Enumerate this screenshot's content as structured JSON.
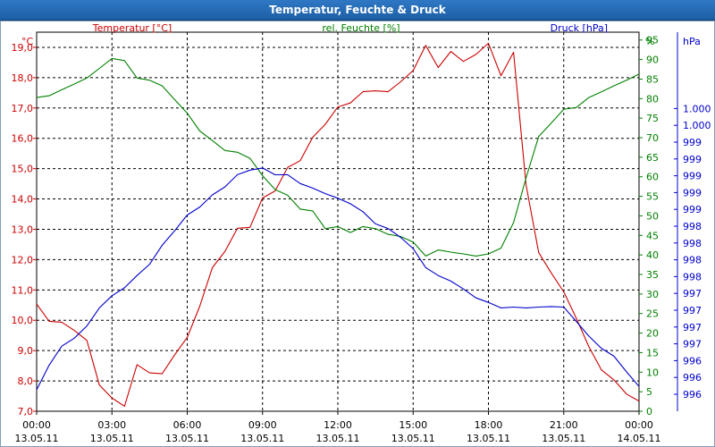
{
  "window": {
    "title": "Temperatur, Feuchte & Druck"
  },
  "colors": {
    "temperature": "#cc0000",
    "humidity": "#008000",
    "pressure": "#0000cc",
    "title_bar": "#1c5fa6",
    "grid": "#000000"
  },
  "chart_data": {
    "type": "line",
    "title": "Temperatur, Feuchte & Druck",
    "grid": true,
    "x_ticks": [
      {
        "time": "00:00",
        "date": "13.05.11"
      },
      {
        "time": "03:00",
        "date": "13.05.11"
      },
      {
        "time": "06:00",
        "date": "13.05.11"
      },
      {
        "time": "09:00",
        "date": "13.05.11"
      },
      {
        "time": "12:00",
        "date": "13.05.11"
      },
      {
        "time": "15:00",
        "date": "13.05.11"
      },
      {
        "time": "18:00",
        "date": "13.05.11"
      },
      {
        "time": "21:00",
        "date": "13.05.11"
      },
      {
        "time": "00:00",
        "date": "14.05.11"
      }
    ],
    "x_range": [
      "13.05.11 00:00",
      "14.05.11 00:00"
    ],
    "axes": {
      "temperature": {
        "label": "Temperatur [°C]",
        "unit": "°C",
        "min": 7,
        "max": 19.5,
        "ticks": [
          "7,0",
          "8,0",
          "9,0",
          "10,0",
          "11,0",
          "12,0",
          "13,0",
          "14,0",
          "15,0",
          "16,0",
          "17,0",
          "18,0",
          "19,0"
        ]
      },
      "humidity": {
        "label": "rel. Feuchte [%]",
        "unit": "%",
        "min": 0,
        "max": 97,
        "ticks": [
          "0",
          "5",
          "10",
          "15",
          "20",
          "25",
          "30",
          "35",
          "40",
          "45",
          "50",
          "55",
          "60",
          "65",
          "70",
          "75",
          "80",
          "85",
          "90",
          "95"
        ]
      },
      "pressure": {
        "label": "Druck [hPa]",
        "unit": "hPa",
        "ticks": [
          "996",
          "996",
          "996",
          "997",
          "997",
          "997",
          "997",
          "998",
          "998",
          "998",
          "998",
          "999",
          "999",
          "999",
          "999",
          "999",
          "1.000",
          "1.000"
        ]
      }
    },
    "series": [
      {
        "name": "Temperatur [°C]",
        "axis": "temperature",
        "x": [
          "00:00",
          "00:30",
          "01:00",
          "01:30",
          "02:00",
          "02:30",
          "03:00",
          "03:30",
          "04:00",
          "04:30",
          "05:00",
          "05:30",
          "06:00",
          "06:30",
          "07:00",
          "07:30",
          "08:00",
          "08:30",
          "09:00",
          "09:30",
          "10:00",
          "10:30",
          "11:00",
          "11:30",
          "12:00",
          "12:30",
          "13:00",
          "13:30",
          "14:00",
          "14:30",
          "15:00",
          "15:30",
          "16:00",
          "16:30",
          "17:00",
          "17:30",
          "18:00",
          "18:30",
          "19:00",
          "19:30",
          "20:00",
          "20:30",
          "21:00",
          "21:30",
          "22:00",
          "22:30",
          "23:00",
          "23:30",
          "24:00"
        ],
        "values": [
          10.5,
          10.0,
          9.9,
          9.7,
          9.3,
          7.9,
          7.4,
          7.2,
          8.5,
          8.3,
          8.2,
          8.9,
          9.4,
          10.5,
          11.7,
          12.3,
          13.0,
          13.1,
          14.0,
          14.3,
          15.0,
          15.3,
          16.0,
          16.5,
          17.0,
          17.2,
          17.5,
          17.6,
          17.5,
          17.9,
          18.2,
          19.1,
          18.3,
          18.9,
          18.5,
          18.8,
          19.1,
          18.1,
          18.8,
          14.5,
          12.2,
          11.6,
          10.9,
          10.1,
          9.1,
          8.4,
          8.0,
          7.6,
          7.3
        ]
      },
      {
        "name": "rel. Feuchte [%]",
        "axis": "humidity",
        "x": [
          "00:00",
          "00:30",
          "01:00",
          "01:30",
          "02:00",
          "02:30",
          "03:00",
          "03:30",
          "04:00",
          "04:30",
          "05:00",
          "05:30",
          "06:00",
          "06:30",
          "07:00",
          "07:30",
          "08:00",
          "08:30",
          "09:00",
          "09:30",
          "10:00",
          "10:30",
          "11:00",
          "11:30",
          "12:00",
          "12:30",
          "13:00",
          "13:30",
          "14:00",
          "14:30",
          "15:00",
          "15:30",
          "16:00",
          "16:30",
          "17:00",
          "17:30",
          "18:00",
          "18:30",
          "19:00",
          "19:30",
          "20:00",
          "20:30",
          "21:00",
          "21:30",
          "22:00",
          "22:30",
          "23:00",
          "23:30",
          "24:00"
        ],
        "values": [
          80,
          81,
          82,
          84,
          85,
          88,
          90,
          90,
          85,
          85,
          83,
          80,
          76,
          72,
          69,
          67,
          66,
          65,
          60,
          57,
          55,
          52,
          51,
          47,
          47,
          46,
          47,
          47,
          45,
          45,
          43,
          40,
          41,
          41,
          40,
          40,
          40,
          42,
          48,
          60,
          70,
          74,
          77,
          78,
          80,
          82,
          83,
          85,
          86
        ]
      },
      {
        "name": "Druck [hPa]",
        "axis": "pressure",
        "x": [
          "00:00",
          "00:30",
          "01:00",
          "01:30",
          "02:00",
          "02:30",
          "03:00",
          "03:30",
          "04:00",
          "04:30",
          "05:00",
          "05:30",
          "06:00",
          "06:30",
          "07:00",
          "07:30",
          "08:00",
          "08:30",
          "09:00",
          "09:30",
          "10:00",
          "10:30",
          "11:00",
          "11:30",
          "12:00",
          "12:30",
          "13:00",
          "13:30",
          "14:00",
          "14:30",
          "15:00",
          "15:30",
          "16:00",
          "16:30",
          "17:00",
          "17:30",
          "18:00",
          "18:30",
          "19:00",
          "19:30",
          "20:00",
          "20:30",
          "21:00",
          "21:30",
          "22:00",
          "22:30",
          "23:00",
          "23:30",
          "24:00"
        ],
        "values": [
          996.05,
          996.45,
          996.7,
          996.85,
          997.0,
          997.3,
          997.45,
          997.6,
          997.75,
          997.95,
          998.2,
          998.45,
          998.65,
          998.8,
          998.95,
          999.1,
          999.25,
          999.35,
          999.35,
          999.28,
          999.25,
          999.15,
          999.05,
          999.0,
          998.9,
          998.85,
          998.7,
          998.55,
          998.45,
          998.35,
          998.15,
          997.9,
          997.75,
          997.7,
          997.55,
          997.45,
          997.35,
          997.3,
          997.28,
          997.3,
          997.28,
          997.32,
          997.28,
          997.1,
          996.85,
          996.7,
          996.55,
          996.35,
          996.1
        ]
      }
    ]
  }
}
